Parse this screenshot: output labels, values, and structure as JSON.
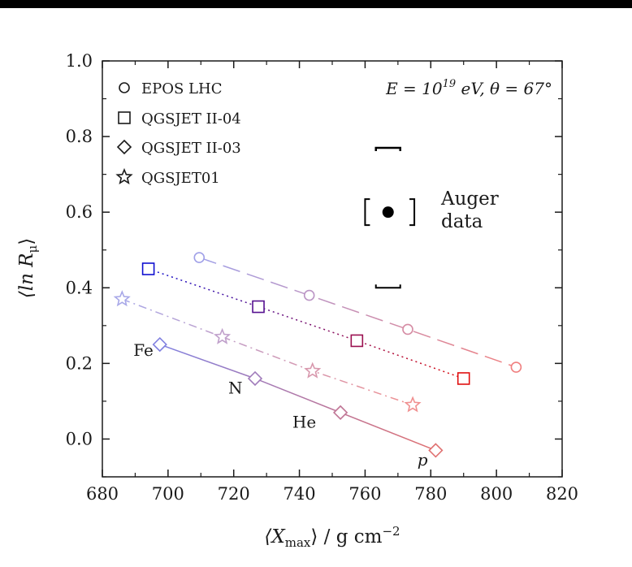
{
  "chart_data": {
    "type": "line",
    "xlabel": "⟨X",
    "xlabel_sub": "max",
    "xlabel_tail": "⟩ / g cm",
    "xlabel_sup": "−2",
    "ylabel": "⟨ln R",
    "ylabel_sub": "μ",
    "ylabel_tail": "⟩",
    "xlim": [
      680,
      820
    ],
    "ylim": [
      -0.1,
      1.0
    ],
    "x_ticks": [
      680,
      700,
      720,
      740,
      760,
      780,
      800,
      820
    ],
    "y_ticks": [
      0.0,
      0.2,
      0.4,
      0.6,
      0.8,
      1.0
    ],
    "x_tick_labels": [
      "680",
      "700",
      "720",
      "740",
      "760",
      "780",
      "800",
      "820"
    ],
    "y_tick_labels": [
      "0.0",
      "0.2",
      "0.4",
      "0.6",
      "0.8",
      "1.0"
    ],
    "grid": false,
    "legend_position": "top-left",
    "annotation": {
      "text": "E = 10",
      "sup": "19",
      "tail": " eV, θ = 67°"
    },
    "series": [
      {
        "name": "EPOS LHC",
        "marker": "circle",
        "dash": "22,9",
        "color_start": "#a0a0e8",
        "color_end": "#f08080",
        "x": [
          709.5,
          743.0,
          773.0,
          806.0
        ],
        "y": [
          0.48,
          0.38,
          0.29,
          0.19
        ]
      },
      {
        "name": "QGSJET II-04",
        "marker": "square",
        "dash": "2,4",
        "color_start": "#1010d0",
        "color_end": "#e01010",
        "x": [
          694.0,
          727.5,
          757.5,
          790.0
        ],
        "y": [
          0.45,
          0.35,
          0.26,
          0.16
        ]
      },
      {
        "name": "QGSJET II-03",
        "marker": "diamond",
        "dash": "",
        "color_start": "#8080e0",
        "color_end": "#e07070",
        "x": [
          697.5,
          726.5,
          752.5,
          781.5
        ],
        "y": [
          0.25,
          0.16,
          0.07,
          -0.03
        ]
      },
      {
        "name": "QGSJET01",
        "marker": "star",
        "dash": "10,5,2,5",
        "color_start": "#a8a8e8",
        "color_end": "#f09090",
        "x": [
          686.0,
          716.5,
          744.0,
          774.5
        ],
        "y": [
          0.37,
          0.27,
          0.18,
          0.09
        ]
      }
    ],
    "auger": {
      "label_line1": "Auger",
      "label_line2": "data",
      "x": 767.0,
      "y": 0.6,
      "sys_low": 0.4,
      "sys_high": 0.77,
      "x_sys_low": 760.0,
      "x_sys_high": 775.0
    },
    "primary_labels": [
      {
        "text": "Fe",
        "x": 692.5,
        "y": 0.22
      },
      {
        "text": "N",
        "x": 720.5,
        "y": 0.12
      },
      {
        "text": "He",
        "x": 741.5,
        "y": 0.03
      },
      {
        "text": "p",
        "x": 777.5,
        "y": -0.07
      }
    ]
  }
}
